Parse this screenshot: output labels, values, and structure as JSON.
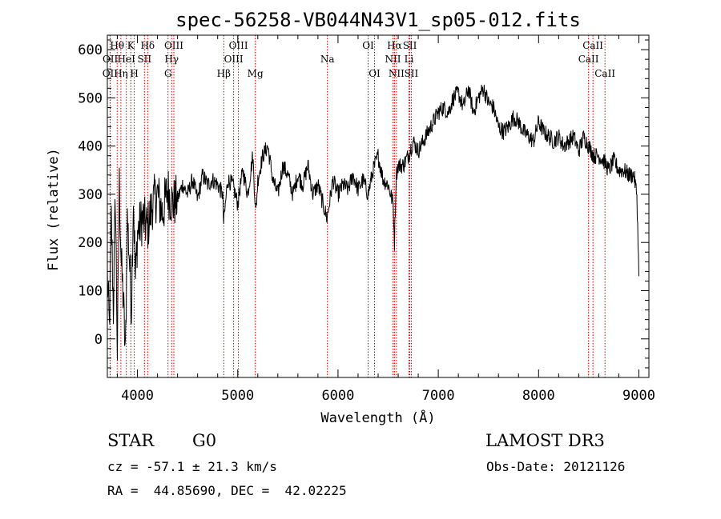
{
  "chart_data": {
    "type": "line",
    "title": "spec-56258-VB044N43V1_sp05-012.fits",
    "xlabel": "Wavelength (Å)",
    "ylabel": "Flux (relative)",
    "xlim": [
      3700,
      9100
    ],
    "ylim": [
      -80,
      630
    ],
    "xticks": [
      4000,
      5000,
      6000,
      7000,
      8000,
      9000
    ],
    "yticks": [
      0,
      100,
      200,
      300,
      400,
      500,
      600
    ],
    "series": [
      {
        "name": "flux",
        "x": [
          3700,
          3720,
          3740,
          3760,
          3780,
          3800,
          3820,
          3840,
          3860,
          3880,
          3900,
          3920,
          3940,
          3960,
          3980,
          4000,
          4050,
          4100,
          4150,
          4200,
          4250,
          4300,
          4350,
          4400,
          4450,
          4500,
          4550,
          4600,
          4650,
          4700,
          4750,
          4800,
          4850,
          4860,
          4900,
          4950,
          5000,
          5050,
          5100,
          5150,
          5180,
          5200,
          5250,
          5300,
          5350,
          5400,
          5450,
          5500,
          5550,
          5600,
          5650,
          5700,
          5750,
          5800,
          5850,
          5890,
          5950,
          6000,
          6050,
          6100,
          6150,
          6200,
          6250,
          6300,
          6350,
          6400,
          6450,
          6500,
          6550,
          6563,
          6580,
          6600,
          6650,
          6700,
          6750,
          6800,
          6850,
          6900,
          6950,
          7000,
          7050,
          7100,
          7150,
          7200,
          7250,
          7300,
          7350,
          7400,
          7450,
          7500,
          7550,
          7600,
          7650,
          7700,
          7750,
          7800,
          7850,
          7900,
          7950,
          8000,
          8050,
          8100,
          8150,
          8200,
          8250,
          8300,
          8350,
          8400,
          8450,
          8500,
          8550,
          8600,
          8650,
          8700,
          8750,
          8800,
          8850,
          8900,
          8950,
          8980,
          9000
        ],
        "y": [
          130,
          20,
          250,
          60,
          300,
          -30,
          320,
          150,
          80,
          -40,
          250,
          170,
          60,
          300,
          120,
          220,
          250,
          230,
          280,
          300,
          260,
          310,
          280,
          290,
          320,
          300,
          330,
          290,
          340,
          320,
          330,
          320,
          300,
          240,
          330,
          320,
          280,
          350,
          300,
          380,
          260,
          330,
          380,
          400,
          330,
          300,
          360,
          340,
          300,
          340,
          320,
          360,
          300,
          320,
          280,
          250,
          330,
          300,
          320,
          310,
          340,
          310,
          330,
          300,
          350,
          380,
          330,
          320,
          280,
          200,
          340,
          360,
          360,
          380,
          410,
          390,
          410,
          430,
          450,
          470,
          480,
          470,
          500,
          510,
          480,
          520,
          470,
          500,
          520,
          490,
          480,
          440,
          430,
          440,
          460,
          450,
          430,
          420,
          410,
          450,
          430,
          420,
          410,
          420,
          400,
          410,
          420,
          390,
          420,
          400,
          380,
          380,
          370,
          350,
          370,
          350,
          350,
          340,
          340,
          300,
          130
        ]
      }
    ],
    "line_markers": [
      {
        "label": "OII",
        "x": 3727,
        "row": 3
      },
      {
        "label": "OII",
        "x": 3729,
        "row": 2
      },
      {
        "label": "Hθ",
        "x": 3798,
        "row": 1
      },
      {
        "label": "Hη",
        "x": 3835,
        "row": 3
      },
      {
        "label": "HeI",
        "x": 3889,
        "row": 2
      },
      {
        "label": "K",
        "x": 3934,
        "row": 1
      },
      {
        "label": "H",
        "x": 3968,
        "row": 3
      },
      {
        "label": "SII",
        "x": 4070,
        "row": 2
      },
      {
        "label": "Hδ",
        "x": 4102,
        "row": 1
      },
      {
        "label": "G",
        "x": 4305,
        "row": 3
      },
      {
        "label": "Hγ",
        "x": 4341,
        "row": 2
      },
      {
        "label": "OIII",
        "x": 4363,
        "row": 1
      },
      {
        "label": "Hβ",
        "x": 4861,
        "row": 3
      },
      {
        "label": "OIII",
        "x": 4959,
        "row": 2
      },
      {
        "label": "OIII",
        "x": 5007,
        "row": 1
      },
      {
        "label": "Mg",
        "x": 5175,
        "row": 3
      },
      {
        "label": "Na",
        "x": 5894,
        "row": 2
      },
      {
        "label": "OI",
        "x": 6300,
        "row": 1
      },
      {
        "label": "OI",
        "x": 6364,
        "row": 3
      },
      {
        "label": "NII",
        "x": 6548,
        "row": 2
      },
      {
        "label": "Hα",
        "x": 6563,
        "row": 1
      },
      {
        "label": "NII",
        "x": 6583,
        "row": 3
      },
      {
        "label": "Li",
        "x": 6708,
        "row": 2
      },
      {
        "label": "SII",
        "x": 6716,
        "row": 1
      },
      {
        "label": "SII",
        "x": 6731,
        "row": 3
      },
      {
        "label": "CaII",
        "x": 8498,
        "row": 2
      },
      {
        "label": "CaII",
        "x": 8542,
        "row": 1
      },
      {
        "label": "CaII",
        "x": 8662,
        "row": 3
      }
    ]
  },
  "info": {
    "class_label": "STAR",
    "subclass": "G0",
    "survey": "LAMOST DR3",
    "redshift": "cz = -57.1 ± 21.3 km/s",
    "obs_date": "Obs-Date: 20121126",
    "coords": "RA =  44.85690, DEC =  42.02225"
  },
  "colors": {
    "spectrum": "#000000",
    "marker_line": "#cc0000",
    "axis": "#000000"
  }
}
